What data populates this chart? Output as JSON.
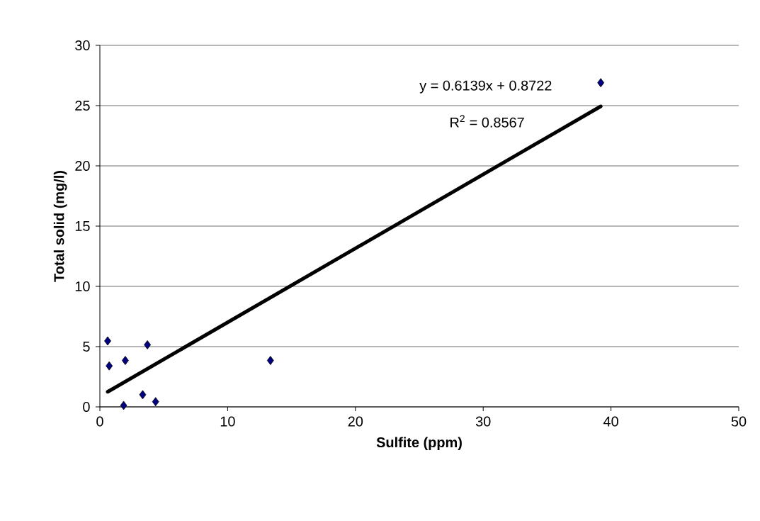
{
  "chart_data": {
    "type": "scatter",
    "xlabel": "Sulfite (ppm)",
    "ylabel": "Total solid (mg/l)",
    "xlim": [
      0,
      50
    ],
    "ylim": [
      0,
      30
    ],
    "xticks": [
      0,
      10,
      20,
      30,
      40,
      50
    ],
    "yticks": [
      0,
      5,
      10,
      15,
      20,
      25,
      30
    ],
    "grid": "y",
    "marker": "diamond",
    "annotations": [
      "y = 0.6139x + 0.8722",
      "R$^{2}$ = 0.8567"
    ],
    "series": [
      {
        "color": "#000080",
        "x": [
          0.61,
          0.73,
          1.99,
          3.72,
          1.86,
          3.35,
          4.36,
          13.35,
          39.2
        ],
        "values": [
          5.47,
          3.4,
          3.85,
          5.15,
          0.12,
          1.01,
          0.43,
          3.85,
          26.9
        ]
      },
      {
        "type": "line",
        "color": "#000000",
        "marker": "none",
        "x": [
          0.61,
          39.2
        ],
        "values": [
          1.25,
          24.94
        ]
      }
    ]
  }
}
